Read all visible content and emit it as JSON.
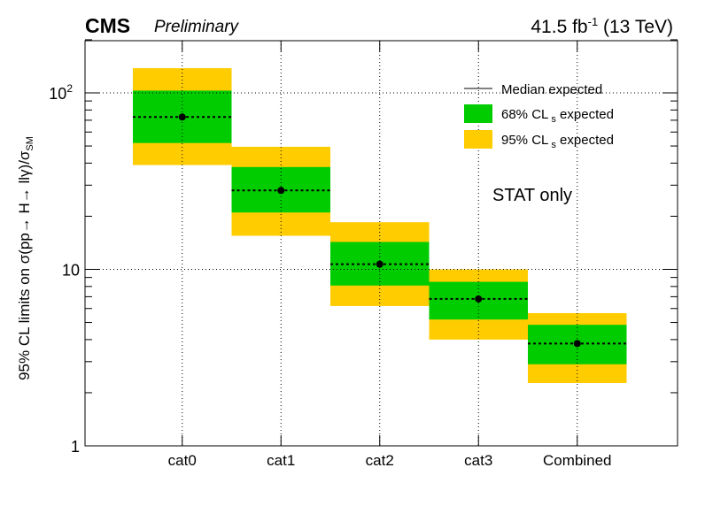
{
  "header": {
    "experiment": "CMS",
    "status": "Preliminary",
    "lumi_main": "41.5 fb",
    "lumi_exp": "-1",
    "lumi_energy": " (13 TeV)"
  },
  "annotation": "STAT only",
  "colors": {
    "band68": "#00cc00",
    "band95": "#ffcc00",
    "median": "#000000"
  },
  "chart_data": {
    "type": "bar",
    "scale": "log",
    "ylim": [
      1,
      200
    ],
    "grid": true,
    "legend_position": "top-right",
    "ylabel": "95% CL limits on σ(pp→ H→ llγ)/σ_SM",
    "categories": [
      "cat0",
      "cat1",
      "cat2",
      "cat3",
      "Combined"
    ],
    "series": [
      {
        "name": "Median expected",
        "values": [
          73,
          28,
          10.7,
          6.8,
          3.8
        ]
      },
      {
        "name": "68% CL_s expected",
        "low": [
          52,
          21,
          8.1,
          5.2,
          2.9
        ],
        "high": [
          103,
          38,
          14.3,
          8.5,
          4.85
        ]
      },
      {
        "name": "95% CL_s expected",
        "low": [
          39,
          15.5,
          6.2,
          4.0,
          2.27
        ],
        "high": [
          138,
          49.5,
          18.5,
          10.0,
          5.65
        ]
      }
    ],
    "yticks": [
      {
        "value": 1,
        "label": "1"
      },
      {
        "value": 10,
        "label": "10"
      },
      {
        "value": 100,
        "label": "10",
        "sup": "2"
      }
    ],
    "legend": [
      {
        "key": "median",
        "label": "Median expected"
      },
      {
        "key": "band68",
        "label": "68% CL",
        "sub": "s",
        "suffix": " expected"
      },
      {
        "key": "band95",
        "label": "95% CL",
        "sub": "s",
        "suffix": " expected"
      }
    ]
  }
}
